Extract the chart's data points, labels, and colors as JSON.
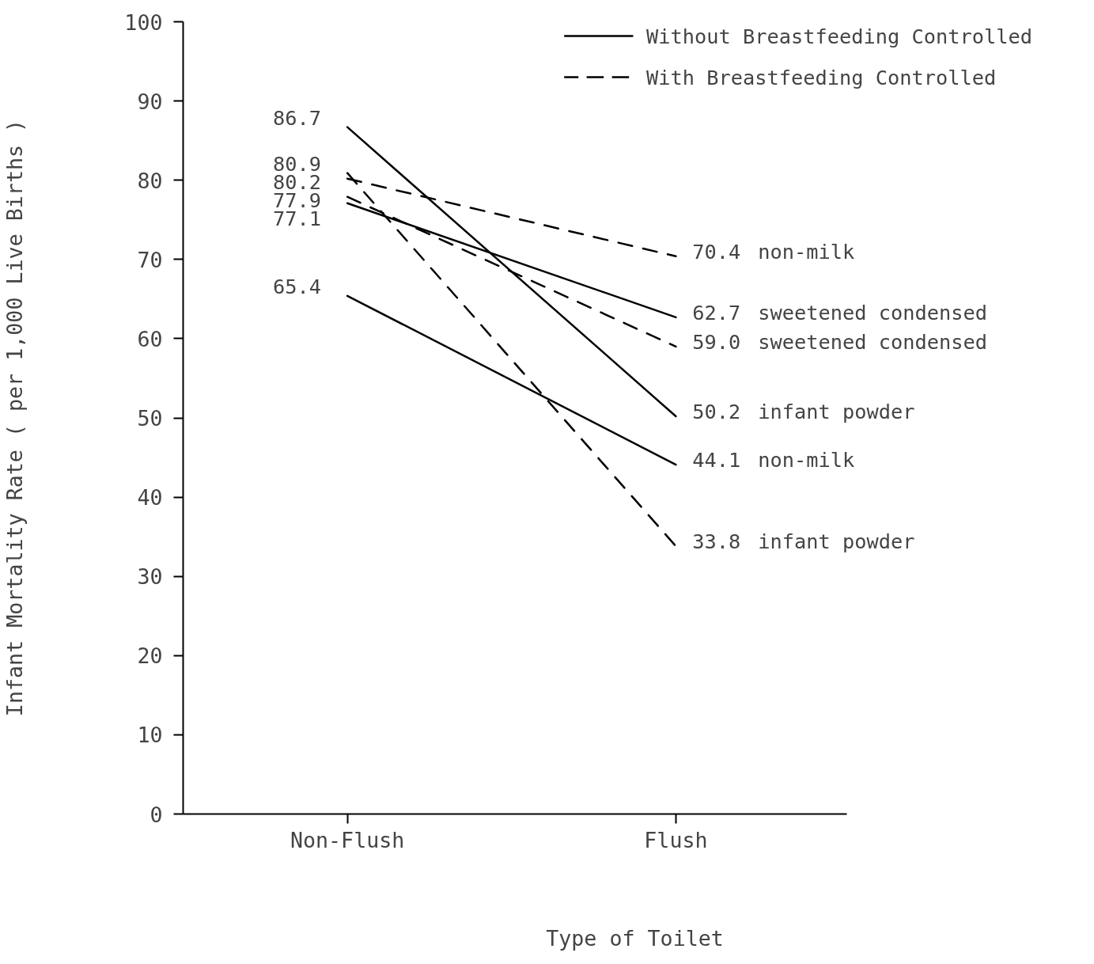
{
  "chart_data": {
    "type": "line",
    "xlabel": "Type of Toilet",
    "ylabel": "Infant Mortality Rate ( per 1,000 Live Births )",
    "categories": [
      "Non-Flush",
      "Flush"
    ],
    "series": [
      {
        "name": "infant powder",
        "color": "#000000",
        "line_style": "solid",
        "values": [
          86.7,
          50.2
        ],
        "value_labels": [
          "86.7",
          "50.2"
        ]
      },
      {
        "name": "sweetened condensed",
        "color": "#000000",
        "line_style": "solid",
        "values": [
          77.1,
          62.7
        ],
        "value_labels": [
          "77.1",
          "62.7"
        ]
      },
      {
        "name": "non-milk",
        "color": "#000000",
        "line_style": "solid",
        "values": [
          65.4,
          44.1
        ],
        "value_labels": [
          "65.4",
          "44.1"
        ]
      },
      {
        "name": "non-milk",
        "color": "#000000",
        "line_style": "dashed",
        "values": [
          80.2,
          70.4
        ],
        "value_labels": [
          "80.2",
          "70.4"
        ]
      },
      {
        "name": "sweetened condensed",
        "color": "#000000",
        "line_style": "dashed",
        "values": [
          77.9,
          59.0
        ],
        "value_labels": [
          "77.9",
          "59.0"
        ]
      },
      {
        "name": "infant powder",
        "color": "#000000",
        "line_style": "dashed",
        "values": [
          80.9,
          33.8
        ],
        "value_labels": [
          "80.9",
          "33.8"
        ]
      }
    ],
    "annotations": [
      "Without Breastfeeding Controlled",
      "With Breastfeeding Controlled"
    ],
    "ylim": [
      0,
      100
    ],
    "yticks": [
      0,
      10,
      20,
      30,
      40,
      50,
      60,
      70,
      80,
      90,
      100
    ],
    "grid": false,
    "marker": "none"
  }
}
